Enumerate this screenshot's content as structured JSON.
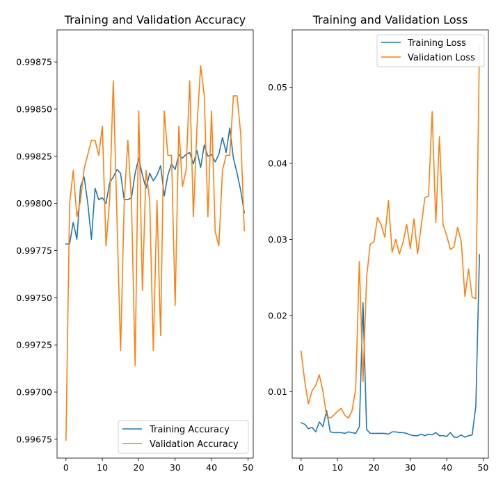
{
  "chart_data": [
    {
      "type": "line",
      "title": "Training and Validation Accuracy",
      "xlabel": "",
      "ylabel": "",
      "xlim": [
        -2.45,
        51.45
      ],
      "ylim": [
        0.99665,
        0.99892
      ],
      "xticks": [
        0,
        10,
        20,
        30,
        40,
        50
      ],
      "yticks": [
        0.99675,
        0.997,
        0.99725,
        0.9975,
        0.99775,
        0.998,
        0.99825,
        0.9985,
        0.99875
      ],
      "ytick_labels": [
        "0.99675",
        "0.99700",
        "0.99725",
        "0.99750",
        "0.99775",
        "0.99800",
        "0.99825",
        "0.99850",
        "0.99875"
      ],
      "grid": false,
      "legend": "lower-right",
      "x": [
        0,
        1,
        2,
        3,
        4,
        5,
        6,
        7,
        8,
        9,
        10,
        11,
        12,
        13,
        14,
        15,
        16,
        17,
        18,
        19,
        20,
        21,
        22,
        23,
        24,
        25,
        26,
        27,
        28,
        29,
        30,
        31,
        32,
        33,
        34,
        35,
        36,
        37,
        38,
        39,
        40,
        41,
        42,
        43,
        44,
        45,
        46,
        47,
        48,
        49
      ],
      "series": [
        {
          "name": "Training Accuracy",
          "color": "#1f77b4",
          "values": [
            0.997785,
            0.997785,
            0.9979,
            0.99781,
            0.99809,
            0.99814,
            0.998,
            0.99781,
            0.99808,
            0.99802,
            0.99803,
            0.998,
            0.99811,
            0.99814,
            0.99818,
            0.99816,
            0.99802,
            0.99802,
            0.99803,
            0.99816,
            0.99824,
            0.99815,
            0.99808,
            0.99816,
            0.99812,
            0.99815,
            0.9982,
            0.99804,
            0.99815,
            0.99821,
            0.99818,
            0.99826,
            0.99824,
            0.99826,
            0.99827,
            0.99821,
            0.99828,
            0.99819,
            0.99831,
            0.99825,
            0.99826,
            0.99822,
            0.99826,
            0.99835,
            0.99827,
            0.9984,
            0.99824,
            0.99816,
            0.99807,
            0.99795
          ]
        },
        {
          "name": "Validation Accuracy",
          "color": "#ff7f0e",
          "values": [
            0.996745,
            0.998,
            0.998175,
            0.99793,
            0.998015,
            0.998185,
            0.99826,
            0.998335,
            0.998335,
            0.998255,
            0.99841,
            0.997775,
            0.998015,
            0.99865,
            0.99793,
            0.99722,
            0.998005,
            0.998335,
            0.99801,
            0.99714,
            0.99849,
            0.99754,
            0.998175,
            0.998015,
            0.99722,
            0.998015,
            0.9973,
            0.99849,
            0.998255,
            0.998255,
            0.99746,
            0.99841,
            0.99809,
            0.998175,
            0.99865,
            0.99793,
            0.99841,
            0.99873,
            0.99857,
            0.99793,
            0.99849,
            0.99785,
            0.997775,
            0.998175,
            0.998255,
            0.998255,
            0.99857,
            0.99857,
            0.99837,
            0.997855
          ]
        }
      ]
    },
    {
      "type": "line",
      "title": "Training and Validation Loss",
      "xlabel": "",
      "ylabel": "",
      "xlim": [
        -2.45,
        51.45
      ],
      "ylim": [
        0.00125,
        0.05755
      ],
      "xticks": [
        0,
        10,
        20,
        30,
        40,
        50
      ],
      "yticks": [
        0.01,
        0.02,
        0.03,
        0.04,
        0.05
      ],
      "ytick_labels": [
        "0.01",
        "0.02",
        "0.03",
        "0.04",
        "0.05"
      ],
      "grid": false,
      "legend": "top-right",
      "x": [
        0,
        1,
        2,
        3,
        4,
        5,
        6,
        7,
        8,
        9,
        10,
        11,
        12,
        13,
        14,
        15,
        16,
        17,
        18,
        19,
        20,
        21,
        22,
        23,
        24,
        25,
        26,
        27,
        28,
        29,
        30,
        31,
        32,
        33,
        34,
        35,
        36,
        37,
        38,
        39,
        40,
        41,
        42,
        43,
        44,
        45,
        46,
        47,
        48,
        49
      ],
      "series": [
        {
          "name": "Training Loss",
          "color": "#1f77b4",
          "values": [
            0.0059,
            0.0057,
            0.0051,
            0.0053,
            0.0047,
            0.006,
            0.0054,
            0.0075,
            0.0047,
            0.0046,
            0.0046,
            0.0046,
            0.0045,
            0.0047,
            0.0046,
            0.0045,
            0.0054,
            0.0217,
            0.005,
            0.0045,
            0.0045,
            0.0045,
            0.0045,
            0.0045,
            0.0044,
            0.0047,
            0.0047,
            0.0046,
            0.0046,
            0.0045,
            0.0043,
            0.0042,
            0.0042,
            0.0044,
            0.0042,
            0.0044,
            0.0043,
            0.0046,
            0.0042,
            0.0042,
            0.0041,
            0.0046,
            0.004,
            0.004,
            0.0043,
            0.004,
            0.0042,
            0.0043,
            0.0081,
            0.028
          ]
        },
        {
          "name": "Validation Loss",
          "color": "#ff7f0e",
          "values": [
            0.0153,
            0.0113,
            0.0084,
            0.0101,
            0.0108,
            0.0122,
            0.01,
            0.0068,
            0.0065,
            0.0069,
            0.0074,
            0.0078,
            0.0069,
            0.0065,
            0.0075,
            0.0104,
            0.0271,
            0.0113,
            0.0251,
            0.0294,
            0.0297,
            0.0329,
            0.0319,
            0.0303,
            0.0351,
            0.0283,
            0.03,
            0.0281,
            0.0296,
            0.032,
            0.0288,
            0.0327,
            0.0281,
            0.0318,
            0.0355,
            0.0357,
            0.0468,
            0.0322,
            0.0435,
            0.032,
            0.0305,
            0.0287,
            0.029,
            0.0316,
            0.0297,
            0.0225,
            0.0261,
            0.0224,
            0.0222,
            0.0555
          ]
        }
      ]
    }
  ]
}
